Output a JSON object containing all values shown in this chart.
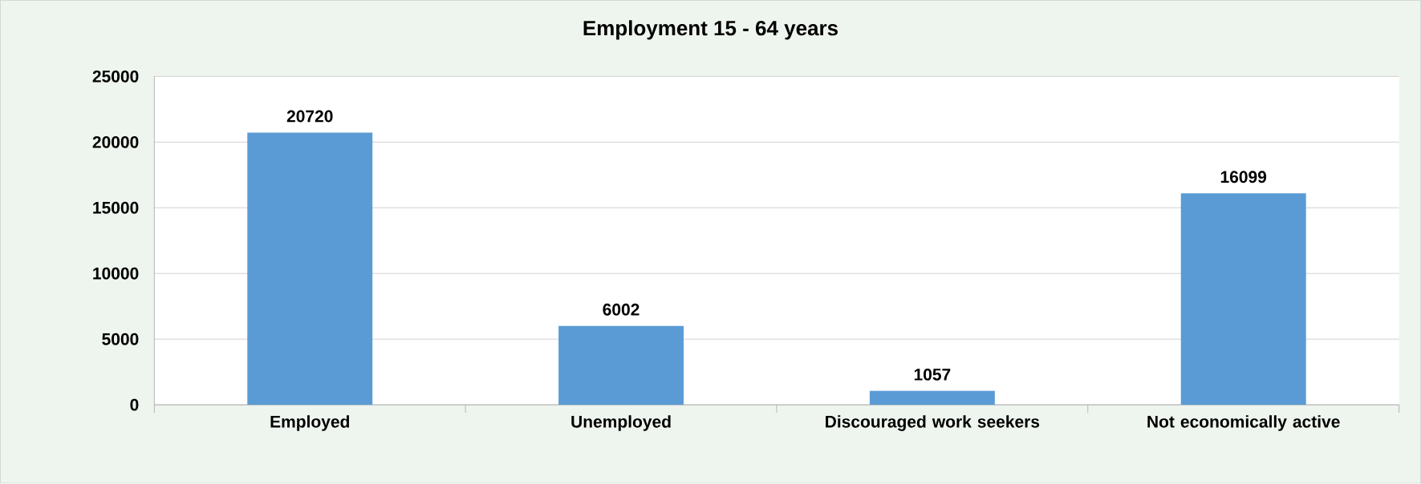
{
  "chart_data": {
    "type": "bar",
    "title": "Employment 15 - 64 years",
    "categories": [
      "Employed",
      "Unemployed",
      "Discouraged work seekers",
      "Not economically active"
    ],
    "values": [
      20720,
      6002,
      1057,
      16099
    ],
    "color": "#5b9bd5",
    "ylim": [
      0,
      25000
    ],
    "yticks": [
      0,
      5000,
      10000,
      15000,
      20000,
      25000
    ],
    "grid": "y",
    "data_labels": true
  }
}
